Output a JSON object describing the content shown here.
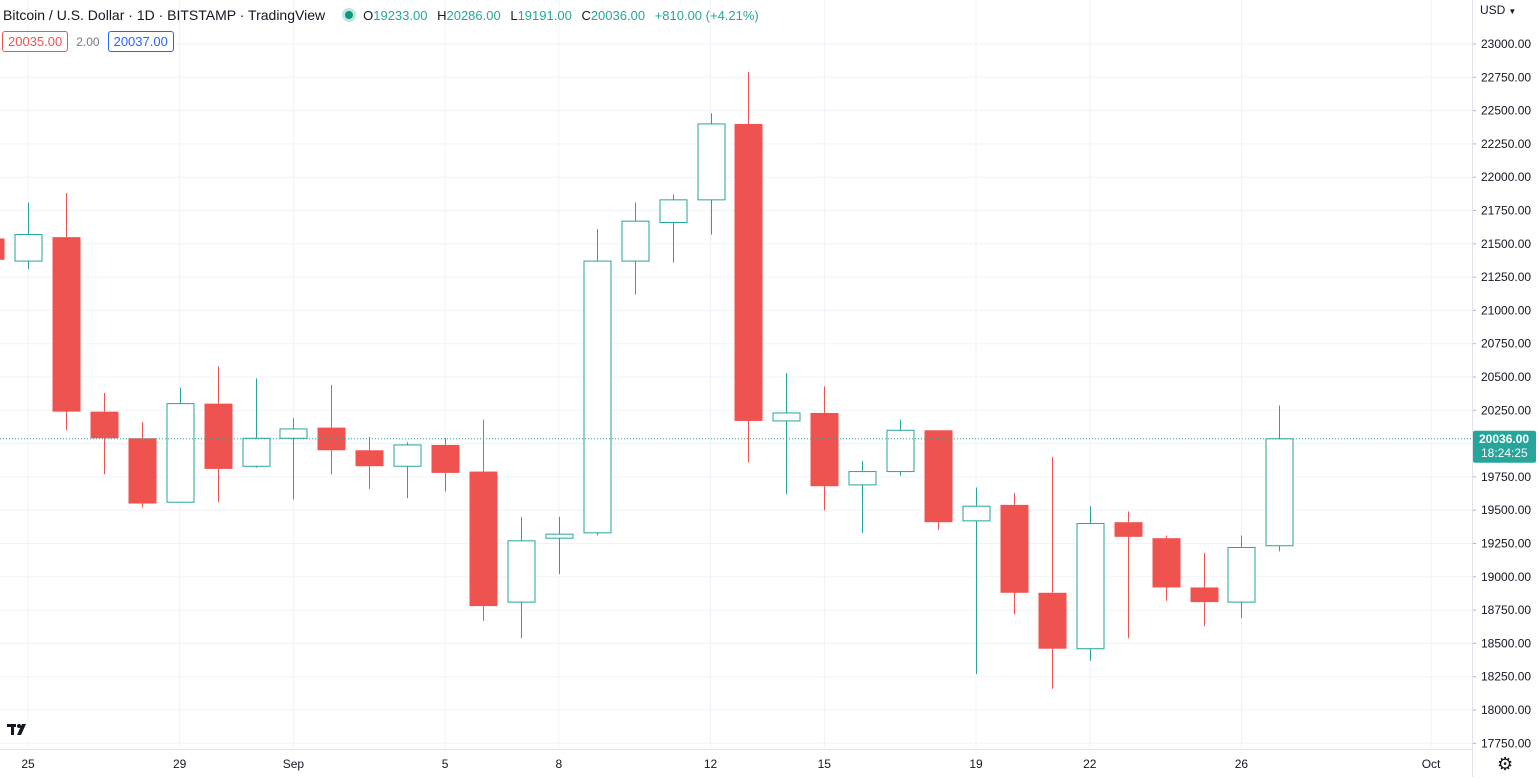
{
  "header": {
    "symbol_title": "Bitcoin / U.S. Dollar · 1D · BITSTAMP · TradingView",
    "ohlc": {
      "o_label": "O",
      "o_value": "19233.00",
      "h_label": "H",
      "h_value": "20286.00",
      "l_label": "L",
      "l_value": "19191.00",
      "c_label": "C",
      "c_value": "20036.00",
      "change": "+810.00 (+4.21%)"
    },
    "bid": "20035.00",
    "spread": "2.00",
    "ask": "20037.00",
    "currency": "USD"
  },
  "colors": {
    "up": "#26a69a",
    "down": "#ef5350",
    "grid": "#f0f3fa",
    "axis_text": "#131722",
    "price_line": "#26a69a"
  },
  "icons": {
    "logo": "tradingview-logo-icon",
    "settings": "gear-icon"
  },
  "chart_data": {
    "type": "candlestick",
    "title": "Bitcoin / U.S. Dollar · 1D · BITSTAMP · TradingView",
    "ylim": [
      17750,
      23000
    ],
    "y_ticks": [
      "17750.00",
      "18000.00",
      "18250.00",
      "18500.00",
      "18750.00",
      "19000.00",
      "19250.00",
      "19500.00",
      "19750.00",
      "20000.00",
      "20250.00",
      "20500.00",
      "20750.00",
      "21000.00",
      "21250.00",
      "21500.00",
      "21750.00",
      "22000.00",
      "22250.00",
      "22500.00",
      "22750.00",
      "23000.00"
    ],
    "x_labels": [
      {
        "index": 0,
        "label": "25"
      },
      {
        "index": 4,
        "label": "29"
      },
      {
        "index": 7,
        "label": "Sep"
      },
      {
        "index": 11,
        "label": "5"
      },
      {
        "index": 14,
        "label": "8"
      },
      {
        "index": 18,
        "label": "12"
      },
      {
        "index": 21,
        "label": "15"
      },
      {
        "index": 25,
        "label": "19"
      },
      {
        "index": 28,
        "label": "22"
      },
      {
        "index": 32,
        "label": "26"
      },
      {
        "index": 37,
        "label": "Oct"
      }
    ],
    "candles": [
      {
        "index": -1,
        "o": 21540,
        "h": 21540,
        "l": 21380,
        "c": 21380
      },
      {
        "index": 0,
        "o": 21370,
        "h": 21810,
        "l": 21310,
        "c": 21570
      },
      {
        "index": 1,
        "o": 21550,
        "h": 21880,
        "l": 20100,
        "c": 20240
      },
      {
        "index": 2,
        "o": 20240,
        "h": 20380,
        "l": 19770,
        "c": 20040
      },
      {
        "index": 3,
        "o": 20040,
        "h": 20160,
        "l": 19520,
        "c": 19550
      },
      {
        "index": 4,
        "o": 19560,
        "h": 20420,
        "l": 19560,
        "c": 20300
      },
      {
        "index": 5,
        "o": 20300,
        "h": 20580,
        "l": 19560,
        "c": 19810
      },
      {
        "index": 6,
        "o": 19830,
        "h": 20490,
        "l": 19820,
        "c": 20040
      },
      {
        "index": 7,
        "o": 20040,
        "h": 20190,
        "l": 19580,
        "c": 20110
      },
      {
        "index": 8,
        "o": 20120,
        "h": 20440,
        "l": 19770,
        "c": 19950
      },
      {
        "index": 9,
        "o": 19950,
        "h": 20050,
        "l": 19660,
        "c": 19830
      },
      {
        "index": 10,
        "o": 19830,
        "h": 20010,
        "l": 19590,
        "c": 19990
      },
      {
        "index": 11,
        "o": 19990,
        "h": 20040,
        "l": 19640,
        "c": 19780
      },
      {
        "index": 12,
        "o": 19790,
        "h": 20180,
        "l": 18670,
        "c": 18780
      },
      {
        "index": 13,
        "o": 18810,
        "h": 19450,
        "l": 18540,
        "c": 19270
      },
      {
        "index": 14,
        "o": 19290,
        "h": 19450,
        "l": 19020,
        "c": 19320
      },
      {
        "index": 15,
        "o": 19330,
        "h": 21610,
        "l": 19310,
        "c": 21370
      },
      {
        "index": 16,
        "o": 21370,
        "h": 21810,
        "l": 21120,
        "c": 21670
      },
      {
        "index": 17,
        "o": 21660,
        "h": 21870,
        "l": 21360,
        "c": 21830
      },
      {
        "index": 18,
        "o": 21830,
        "h": 22480,
        "l": 21570,
        "c": 22400
      },
      {
        "index": 19,
        "o": 22400,
        "h": 22790,
        "l": 19860,
        "c": 20170
      },
      {
        "index": 20,
        "o": 20170,
        "h": 20530,
        "l": 19620,
        "c": 20230
      },
      {
        "index": 21,
        "o": 20230,
        "h": 20430,
        "l": 19500,
        "c": 19680
      },
      {
        "index": 22,
        "o": 19690,
        "h": 19870,
        "l": 19330,
        "c": 19790
      },
      {
        "index": 23,
        "o": 19790,
        "h": 20180,
        "l": 19760,
        "c": 20100
      },
      {
        "index": 24,
        "o": 20100,
        "h": 20100,
        "l": 19350,
        "c": 19410
      },
      {
        "index": 25,
        "o": 19420,
        "h": 19670,
        "l": 18270,
        "c": 19530
      },
      {
        "index": 26,
        "o": 19540,
        "h": 19630,
        "l": 18720,
        "c": 18880
      },
      {
        "index": 27,
        "o": 18880,
        "h": 19900,
        "l": 18160,
        "c": 18460
      },
      {
        "index": 28,
        "o": 18460,
        "h": 19530,
        "l": 18370,
        "c": 19400
      },
      {
        "index": 29,
        "o": 19410,
        "h": 19490,
        "l": 18540,
        "c": 19300
      },
      {
        "index": 30,
        "o": 19290,
        "h": 19310,
        "l": 18820,
        "c": 18920
      },
      {
        "index": 31,
        "o": 18920,
        "h": 19180,
        "l": 18630,
        "c": 18810
      },
      {
        "index": 32,
        "o": 18810,
        "h": 19310,
        "l": 18690,
        "c": 19220
      },
      {
        "index": 33,
        "o": 19233,
        "h": 20286,
        "l": 19191,
        "c": 20036
      }
    ],
    "last_price": {
      "value": 20036,
      "label": "20036.00",
      "countdown": "18:24:25"
    }
  }
}
